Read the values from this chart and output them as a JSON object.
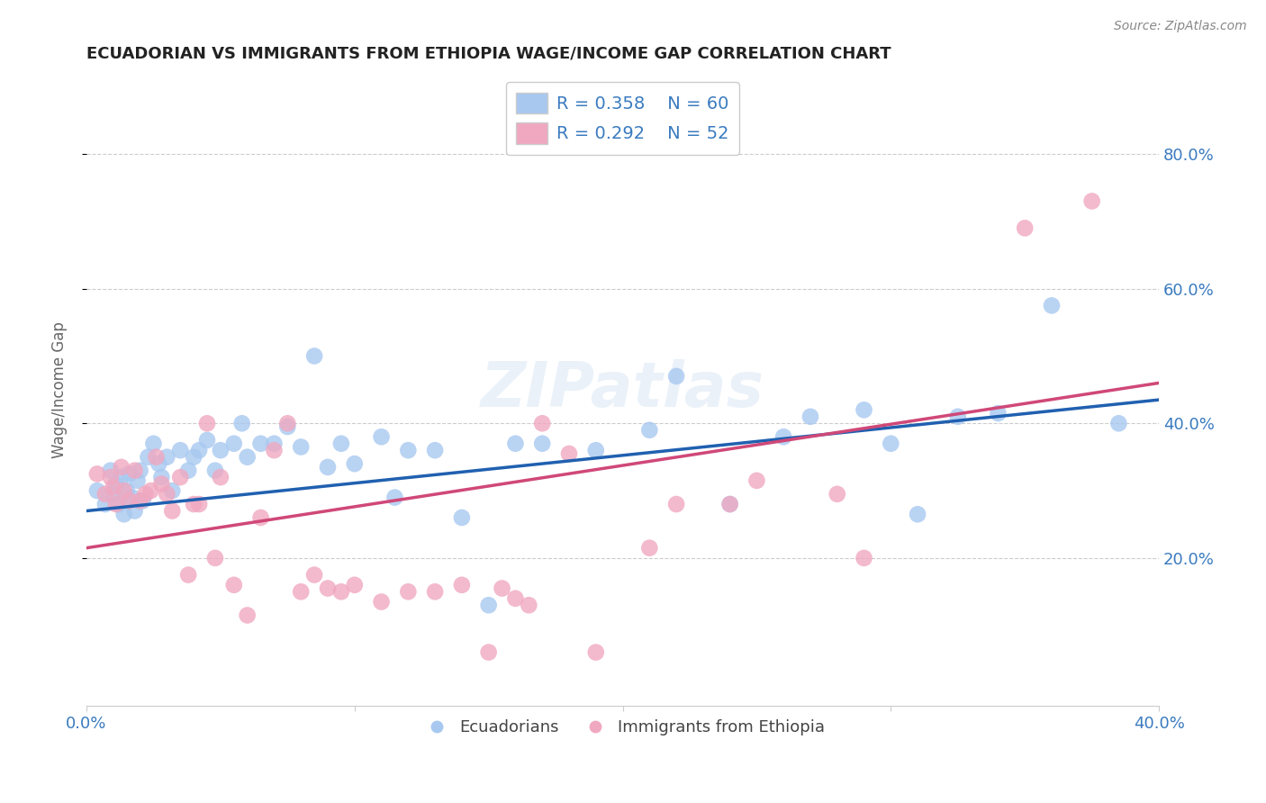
{
  "title": "ECUADORIAN VS IMMIGRANTS FROM ETHIOPIA WAGE/INCOME GAP CORRELATION CHART",
  "source": "Source: ZipAtlas.com",
  "ylabel": "Wage/Income Gap",
  "xlim": [
    0.0,
    0.4
  ],
  "ylim": [
    -0.02,
    0.92
  ],
  "ytick_positions": [
    0.2,
    0.4,
    0.6,
    0.8
  ],
  "ytick_labels": [
    "20.0%",
    "40.0%",
    "60.0%",
    "80.0%"
  ],
  "blue_color": "#a8c8f0",
  "pink_color": "#f0a8c0",
  "blue_line_color": "#2060b0",
  "pink_line_color": "#d04878",
  "legend_label_blue": "Ecuadorians",
  "legend_label_pink": "Immigrants from Ethiopia",
  "watermark": "ZIPatlas",
  "blue_scatter_x": [
    0.004,
    0.007,
    0.009,
    0.01,
    0.011,
    0.012,
    0.013,
    0.014,
    0.015,
    0.016,
    0.017,
    0.018,
    0.019,
    0.02,
    0.021,
    0.023,
    0.025,
    0.027,
    0.028,
    0.03,
    0.032,
    0.035,
    0.038,
    0.04,
    0.042,
    0.045,
    0.048,
    0.05,
    0.055,
    0.058,
    0.06,
    0.065,
    0.07,
    0.075,
    0.08,
    0.085,
    0.09,
    0.095,
    0.1,
    0.11,
    0.115,
    0.12,
    0.13,
    0.14,
    0.15,
    0.16,
    0.17,
    0.19,
    0.21,
    0.22,
    0.24,
    0.26,
    0.27,
    0.29,
    0.3,
    0.31,
    0.325,
    0.34,
    0.36,
    0.385
  ],
  "blue_scatter_y": [
    0.3,
    0.28,
    0.33,
    0.295,
    0.31,
    0.28,
    0.32,
    0.265,
    0.3,
    0.325,
    0.29,
    0.27,
    0.315,
    0.33,
    0.285,
    0.35,
    0.37,
    0.34,
    0.32,
    0.35,
    0.3,
    0.36,
    0.33,
    0.35,
    0.36,
    0.375,
    0.33,
    0.36,
    0.37,
    0.4,
    0.35,
    0.37,
    0.37,
    0.395,
    0.365,
    0.5,
    0.335,
    0.37,
    0.34,
    0.38,
    0.29,
    0.36,
    0.36,
    0.26,
    0.13,
    0.37,
    0.37,
    0.36,
    0.39,
    0.47,
    0.28,
    0.38,
    0.41,
    0.42,
    0.37,
    0.265,
    0.41,
    0.415,
    0.575,
    0.4
  ],
  "pink_scatter_x": [
    0.004,
    0.007,
    0.009,
    0.01,
    0.011,
    0.013,
    0.014,
    0.016,
    0.018,
    0.02,
    0.022,
    0.024,
    0.026,
    0.028,
    0.03,
    0.032,
    0.035,
    0.038,
    0.04,
    0.042,
    0.045,
    0.048,
    0.05,
    0.055,
    0.06,
    0.065,
    0.07,
    0.075,
    0.08,
    0.085,
    0.09,
    0.095,
    0.1,
    0.11,
    0.12,
    0.13,
    0.14,
    0.15,
    0.155,
    0.16,
    0.165,
    0.17,
    0.18,
    0.19,
    0.21,
    0.22,
    0.24,
    0.25,
    0.28,
    0.29,
    0.35,
    0.375
  ],
  "pink_scatter_y": [
    0.325,
    0.295,
    0.32,
    0.305,
    0.28,
    0.335,
    0.3,
    0.285,
    0.33,
    0.285,
    0.295,
    0.3,
    0.35,
    0.31,
    0.295,
    0.27,
    0.32,
    0.175,
    0.28,
    0.28,
    0.4,
    0.2,
    0.32,
    0.16,
    0.115,
    0.26,
    0.36,
    0.4,
    0.15,
    0.175,
    0.155,
    0.15,
    0.16,
    0.135,
    0.15,
    0.15,
    0.16,
    0.06,
    0.155,
    0.14,
    0.13,
    0.4,
    0.355,
    0.06,
    0.215,
    0.28,
    0.28,
    0.315,
    0.295,
    0.2,
    0.69,
    0.73
  ],
  "blue_trend_x": [
    0.0,
    0.4
  ],
  "blue_trend_y": [
    0.27,
    0.435
  ],
  "pink_trend_x": [
    0.0,
    0.4
  ],
  "pink_trend_y": [
    0.215,
    0.46
  ]
}
